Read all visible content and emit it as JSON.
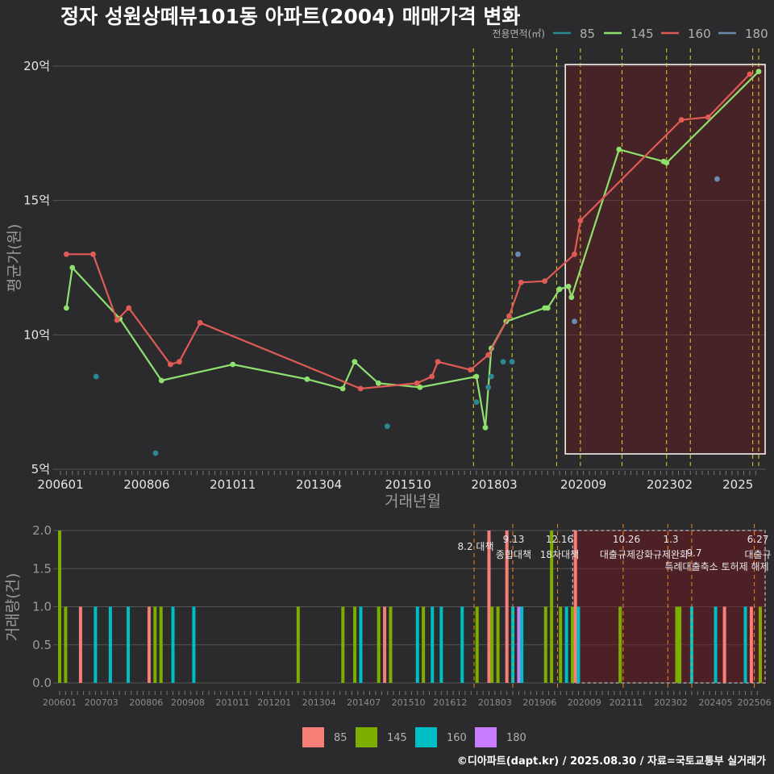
{
  "chart_data": [
    {
      "type": "line",
      "title": "정자 성원상떼뷰101동 아파트(2004) 매매가격 변화",
      "xlabel": "거래년월",
      "ylabel": "평균가(원)",
      "x_ticks": [
        "200601",
        "200806",
        "201011",
        "201304",
        "201510",
        "201803",
        "202009",
        "202302",
        "2025"
      ],
      "y_ticks": [
        "5억",
        "10억",
        "15억",
        "20억"
      ],
      "ylim": [
        5,
        20.6
      ],
      "legend_title": "전용면적(㎡)",
      "legend": [
        {
          "label": "85",
          "color": "#2a8a8f"
        },
        {
          "label": "145",
          "color": "#8fe16e"
        },
        {
          "label": "160",
          "color": "#e05a56"
        },
        {
          "label": "180",
          "color": "#6b8bb0"
        }
      ],
      "highlight_range": [
        "2020-04",
        "2025-08"
      ],
      "policy_lines": [
        "2017-08",
        "2018-09",
        "2019-12",
        "2020-08",
        "2021-10",
        "2023-01",
        "2023-09",
        "2025-06",
        "2025-08"
      ],
      "series": [
        {
          "name": "145",
          "color": "#8fe16e",
          "points": [
            [
              "2006-03",
              11.0
            ],
            [
              "2006-05",
              12.5
            ],
            [
              "2007-09",
              10.6
            ],
            [
              "2008-11",
              8.3
            ],
            [
              "2010-11",
              8.9
            ],
            [
              "2012-12",
              8.35
            ],
            [
              "2013-12",
              8.0
            ],
            [
              "2014-04",
              9.0
            ],
            [
              "2014-12",
              8.2
            ],
            [
              "2016-02",
              8.05
            ],
            [
              "2017-09",
              8.45
            ],
            [
              "2017-12",
              6.55
            ],
            [
              "2018-02",
              9.5
            ],
            [
              "2018-07",
              10.5
            ],
            [
              "2019-08",
              11.0
            ],
            [
              "2019-09",
              11.0
            ],
            [
              "2020-01",
              11.7
            ],
            [
              "2020-04",
              11.8
            ],
            [
              "2020-05",
              11.4
            ],
            [
              "2021-09",
              16.9
            ],
            [
              "2022-12",
              16.45
            ],
            [
              "2023-01",
              16.4
            ],
            [
              "2025-08",
              19.8
            ]
          ]
        },
        {
          "name": "160",
          "color": "#e05a56",
          "points": [
            [
              "2006-03",
              13.0
            ],
            [
              "2006-12",
              13.0
            ],
            [
              "2007-08",
              10.55
            ],
            [
              "2007-12",
              11.0
            ],
            [
              "2009-02",
              8.9
            ],
            [
              "2009-05",
              9.0
            ],
            [
              "2009-12",
              10.45
            ],
            [
              "2014-06",
              8.0
            ],
            [
              "2016-01",
              8.2
            ],
            [
              "2016-06",
              8.45
            ],
            [
              "2016-08",
              9.0
            ],
            [
              "2017-07",
              8.7
            ],
            [
              "2018-01",
              9.25
            ],
            [
              "2018-08",
              10.7
            ],
            [
              "2018-12",
              11.95
            ],
            [
              "2019-08",
              12.0
            ],
            [
              "2020-06",
              13.0
            ],
            [
              "2020-08",
              14.25
            ],
            [
              "2023-06",
              18.0
            ],
            [
              "2024-03",
              18.1
            ],
            [
              "2025-05",
              19.7
            ]
          ]
        },
        {
          "name": "85",
          "color": "#2a8a8f",
          "points": [
            [
              "2007-01",
              8.45
            ],
            [
              "2008-09",
              5.6
            ],
            [
              "2015-03",
              6.6
            ],
            [
              "2017-09",
              7.5
            ],
            [
              "2018-01",
              8.05
            ],
            [
              "2018-02",
              8.45
            ],
            [
              "2018-06",
              9.0
            ],
            [
              "2018-09",
              9.0
            ]
          ]
        },
        {
          "name": "180",
          "color": "#6b8bb0",
          "points": [
            [
              "2018-11",
              13.0
            ],
            [
              "2020-06",
              10.5
            ],
            [
              "2024-06",
              15.8
            ]
          ]
        }
      ]
    },
    {
      "type": "bar",
      "ylabel": "거래량(건)",
      "ylim": [
        0,
        2.0
      ],
      "y_ticks": [
        "0.0",
        "0.5",
        "1.0",
        "1.5",
        "2.0"
      ],
      "x_ticks": [
        "200601",
        "200703",
        "200806",
        "200908",
        "201011",
        "201201",
        "201304",
        "201407",
        "201510",
        "201612",
        "201803",
        "201906",
        "202009",
        "202111",
        "202302",
        "202405",
        "202506"
      ],
      "legend": [
        {
          "label": "85",
          "color": "#f77f78"
        },
        {
          "label": "145",
          "color": "#7cae00"
        },
        {
          "label": "160",
          "color": "#00bfc4"
        },
        {
          "label": "180",
          "color": "#c77cff"
        }
      ],
      "highlight_range": [
        "2020-04",
        "2025-08"
      ],
      "policy_annotations": [
        {
          "date": "2017-08",
          "line1": "8.2 대책",
          "line2": ""
        },
        {
          "date": "2018-09",
          "line1": "9.13",
          "line2": "종합대책"
        },
        {
          "date": "2019-12",
          "line1": "12.16",
          "line2": "18차대책"
        },
        {
          "date": "2021-10",
          "line1": "10.26",
          "line2": "대출규제강화"
        },
        {
          "date": "2023-01",
          "line1": "1.3",
          "line2": "규제완화"
        },
        {
          "date": "2023-09",
          "line1": "",
          "line2": "9.7"
        },
        {
          "date": "2025-06",
          "line1": "6.27",
          "line2": "대출규"
        }
      ],
      "policy_note_line3": "특례대출축소 토허제 해제",
      "bars": [
        {
          "d": "2006-01",
          "s": "145",
          "v": 2
        },
        {
          "d": "2006-03",
          "s": "145",
          "v": 1
        },
        {
          "d": "2006-08",
          "s": "85",
          "v": 1
        },
        {
          "d": "2007-01",
          "s": "160",
          "v": 1
        },
        {
          "d": "2007-06",
          "s": "160",
          "v": 1
        },
        {
          "d": "2007-12",
          "s": "160",
          "v": 1
        },
        {
          "d": "2008-07",
          "s": "85",
          "v": 1
        },
        {
          "d": "2008-09",
          "s": "145",
          "v": 1
        },
        {
          "d": "2008-11",
          "s": "145",
          "v": 1
        },
        {
          "d": "2009-03",
          "s": "160",
          "v": 1
        },
        {
          "d": "2009-10",
          "s": "160",
          "v": 1
        },
        {
          "d": "2012-09",
          "s": "145",
          "v": 1
        },
        {
          "d": "2013-12",
          "s": "145",
          "v": 1
        },
        {
          "d": "2014-04",
          "s": "145",
          "v": 1
        },
        {
          "d": "2014-06",
          "s": "160",
          "v": 1
        },
        {
          "d": "2014-12",
          "s": "145",
          "v": 1
        },
        {
          "d": "2015-02",
          "s": "85",
          "v": 1
        },
        {
          "d": "2015-04",
          "s": "145",
          "v": 1
        },
        {
          "d": "2016-01",
          "s": "160",
          "v": 1
        },
        {
          "d": "2016-03",
          "s": "145",
          "v": 1
        },
        {
          "d": "2016-06",
          "s": "160",
          "v": 1
        },
        {
          "d": "2016-09",
          "s": "160",
          "v": 1
        },
        {
          "d": "2017-04",
          "s": "160",
          "v": 1
        },
        {
          "d": "2017-09",
          "s": "145",
          "v": 1
        },
        {
          "d": "2018-01",
          "s": "85",
          "v": 2
        },
        {
          "d": "2018-02",
          "s": "145",
          "v": 1
        },
        {
          "d": "2018-04",
          "s": "145",
          "v": 1
        },
        {
          "d": "2018-07",
          "s": "85",
          "v": 2
        },
        {
          "d": "2018-09",
          "s": "160",
          "v": 1
        },
        {
          "d": "2018-11",
          "s": "180",
          "v": 1
        },
        {
          "d": "2018-12",
          "s": "160",
          "v": 1
        },
        {
          "d": "2019-08",
          "s": "145",
          "v": 1
        },
        {
          "d": "2019-10",
          "s": "145",
          "v": 2
        },
        {
          "d": "2020-01",
          "s": "145",
          "v": 1
        },
        {
          "d": "2020-03",
          "s": "160",
          "v": 1
        },
        {
          "d": "2020-05",
          "s": "145",
          "v": 1
        },
        {
          "d": "2020-06",
          "s": "85",
          "v": 2
        },
        {
          "d": "2020-07",
          "s": "160",
          "v": 1
        },
        {
          "d": "2021-09",
          "s": "145",
          "v": 1
        },
        {
          "d": "2023-04",
          "s": "145",
          "v": 1
        },
        {
          "d": "2023-05",
          "s": "145",
          "v": 1
        },
        {
          "d": "2023-09",
          "s": "160",
          "v": 1
        },
        {
          "d": "2024-05",
          "s": "160",
          "v": 1
        },
        {
          "d": "2024-08",
          "s": "85",
          "v": 1
        },
        {
          "d": "2025-03",
          "s": "160",
          "v": 1
        },
        {
          "d": "2025-05",
          "s": "85",
          "v": 1
        },
        {
          "d": "2025-08",
          "s": "145",
          "v": 1
        }
      ]
    }
  ],
  "credit": "©디아파트(dapt.kr) / 2025.08.30 / 자료=국토교통부 실거래가"
}
